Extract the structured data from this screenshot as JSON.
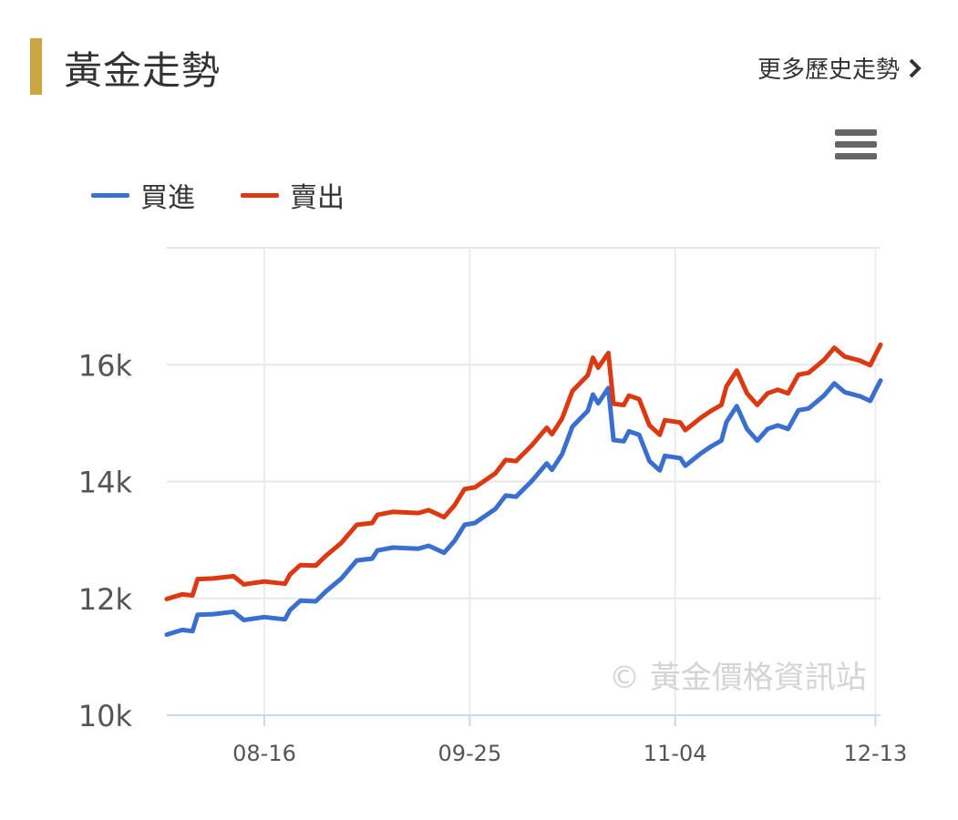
{
  "header": {
    "title": "黃金走勢",
    "more_label": "更多歷史走勢",
    "accent_color": "#c9a640"
  },
  "menu_icon": "hamburger-menu-icon",
  "watermark": "© 黃金價格資訊站",
  "chart_data": {
    "type": "line",
    "legend_position": "top-left",
    "grid": true,
    "ylim": [
      10000,
      18000
    ],
    "y_ticks": [
      {
        "v": 10000,
        "label": "10k"
      },
      {
        "v": 12000,
        "label": "12k"
      },
      {
        "v": 14000,
        "label": "14k"
      },
      {
        "v": 16000,
        "label": "16k"
      }
    ],
    "x_ticks": [
      "08-16",
      "09-25",
      "11-04",
      "12-13"
    ],
    "x": [
      "07-28",
      "07-31",
      "08-02",
      "08-03",
      "08-06",
      "08-10",
      "08-12",
      "08-16",
      "08-20",
      "08-21",
      "08-23",
      "08-26",
      "08-28",
      "08-31",
      "09-03",
      "09-06",
      "09-07",
      "09-10",
      "09-15",
      "09-17",
      "09-20",
      "09-22",
      "09-24",
      "09-26",
      "09-30",
      "10-02",
      "10-04",
      "10-07",
      "10-10",
      "10-11",
      "10-13",
      "10-15",
      "10-18",
      "10-19",
      "10-20",
      "10-22",
      "10-23",
      "10-25",
      "10-26",
      "10-28",
      "10-30",
      "11-01",
      "11-02",
      "11-05",
      "11-06",
      "11-09",
      "11-11",
      "11-13",
      "11-14",
      "11-16",
      "11-18",
      "11-20",
      "11-22",
      "11-24",
      "11-26",
      "11-28",
      "11-30",
      "12-03",
      "12-05",
      "12-07",
      "12-10",
      "12-12",
      "12-13",
      "12-14"
    ],
    "series": [
      {
        "name": "買進",
        "color": "#3a6fd0",
        "values": [
          11380,
          11460,
          11440,
          11720,
          11730,
          11770,
          11630,
          11680,
          11640,
          11800,
          11960,
          11950,
          12120,
          12340,
          12650,
          12680,
          12820,
          12870,
          12850,
          12900,
          12780,
          12980,
          13260,
          13290,
          13530,
          13760,
          13740,
          14000,
          14310,
          14200,
          14470,
          14940,
          15210,
          15490,
          15340,
          15600,
          14710,
          14690,
          14860,
          14800,
          14350,
          14190,
          14440,
          14400,
          14270,
          14480,
          14600,
          14700,
          15020,
          15290,
          14900,
          14700,
          14900,
          14960,
          14900,
          15220,
          15250,
          15470,
          15680,
          15530,
          15460,
          15380,
          15560,
          15730
        ]
      },
      {
        "name": "賣出",
        "color": "#dc3912",
        "values": [
          11990,
          12070,
          12050,
          12330,
          12340,
          12380,
          12240,
          12290,
          12250,
          12410,
          12570,
          12560,
          12730,
          12950,
          13260,
          13290,
          13430,
          13480,
          13460,
          13510,
          13390,
          13590,
          13870,
          13900,
          14140,
          14370,
          14350,
          14610,
          14920,
          14810,
          15080,
          15550,
          15820,
          16120,
          15950,
          16200,
          15330,
          15310,
          15470,
          15410,
          14960,
          14800,
          15050,
          15010,
          14880,
          15090,
          15210,
          15310,
          15630,
          15900,
          15510,
          15310,
          15510,
          15570,
          15510,
          15830,
          15860,
          16080,
          16290,
          16140,
          16070,
          15990,
          16170,
          16340
        ]
      }
    ]
  }
}
